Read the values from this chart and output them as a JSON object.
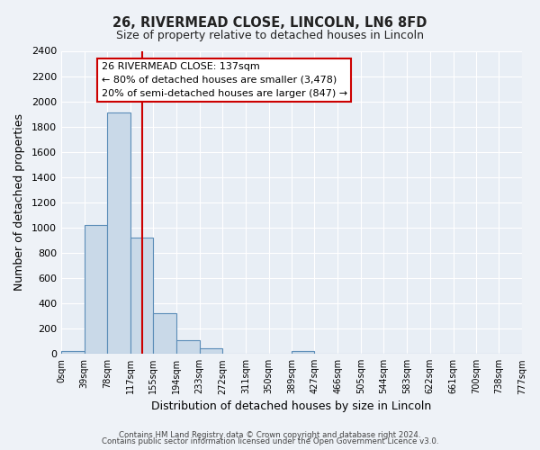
{
  "title": "26, RIVERMEAD CLOSE, LINCOLN, LN6 8FD",
  "subtitle": "Size of property relative to detached houses in Lincoln",
  "xlabel": "Distribution of detached houses by size in Lincoln",
  "ylabel": "Number of detached properties",
  "bin_edges": [
    0,
    39,
    78,
    117,
    155,
    194,
    233,
    272,
    311,
    350,
    389,
    427,
    466,
    505,
    544,
    583,
    622,
    661,
    700,
    738,
    777
  ],
  "bin_labels": [
    "0sqm",
    "39sqm",
    "78sqm",
    "117sqm",
    "155sqm",
    "194sqm",
    "233sqm",
    "272sqm",
    "311sqm",
    "350sqm",
    "389sqm",
    "427sqm",
    "466sqm",
    "505sqm",
    "544sqm",
    "583sqm",
    "622sqm",
    "661sqm",
    "700sqm",
    "738sqm",
    "777sqm"
  ],
  "counts": [
    20,
    1020,
    1910,
    920,
    320,
    105,
    45,
    0,
    0,
    0,
    20,
    0,
    0,
    0,
    0,
    0,
    0,
    0,
    0,
    0
  ],
  "bar_color": "#c9d9e8",
  "bar_edge_color": "#5b8db8",
  "vline_x": 137,
  "vline_color": "#cc0000",
  "ylim": [
    0,
    2400
  ],
  "yticks": [
    0,
    200,
    400,
    600,
    800,
    1000,
    1200,
    1400,
    1600,
    1800,
    2000,
    2200,
    2400
  ],
  "annotation_title": "26 RIVERMEAD CLOSE: 137sqm",
  "annotation_line1": "← 80% of detached houses are smaller (3,478)",
  "annotation_line2": "20% of semi-detached houses are larger (847) →",
  "annotation_box_color": "#ffffff",
  "annotation_box_edge": "#cc0000",
  "bg_color": "#eef2f7",
  "plot_bg_color": "#e8eef5",
  "grid_color": "#ffffff",
  "footer1": "Contains HM Land Registry data © Crown copyright and database right 2024.",
  "footer2": "Contains public sector information licensed under the Open Government Licence v3.0."
}
